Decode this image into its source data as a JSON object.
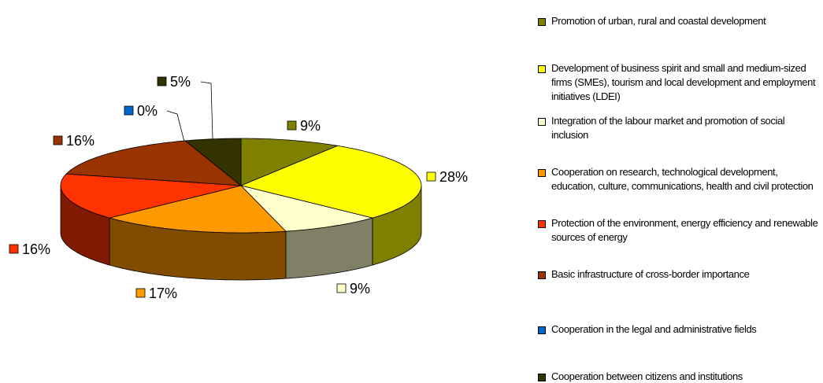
{
  "chart_data": {
    "type": "pie",
    "categories": [
      "Promotion of urban, rural and coastal development",
      "Development of business spirit and small and medium-sized firms (SMEs), tourism and local development and employment initiatives (LDEI)",
      "Integration of the labour market and promotion of social inclusion",
      "Cooperation on research, technological development, education, culture, communications, health and civil protection",
      "Protection of the environment, energy efficiency and renewable sources of energy",
      "Basic infrastructure of cross-border importance",
      "Cooperation in the legal and administrative fields",
      "Cooperation between citizens and institutions"
    ],
    "values": [
      9,
      28,
      9,
      17,
      16,
      16,
      0,
      5
    ],
    "value_labels": [
      "9%",
      "28%",
      "9%",
      "17%",
      "16%",
      "16%",
      "0%",
      "5%"
    ],
    "colors": [
      "#808000",
      "#ffff00",
      "#ffffcc",
      "#ff9900",
      "#ff3300",
      "#993300",
      "#0066cc",
      "#333300"
    ],
    "legend": "right"
  }
}
